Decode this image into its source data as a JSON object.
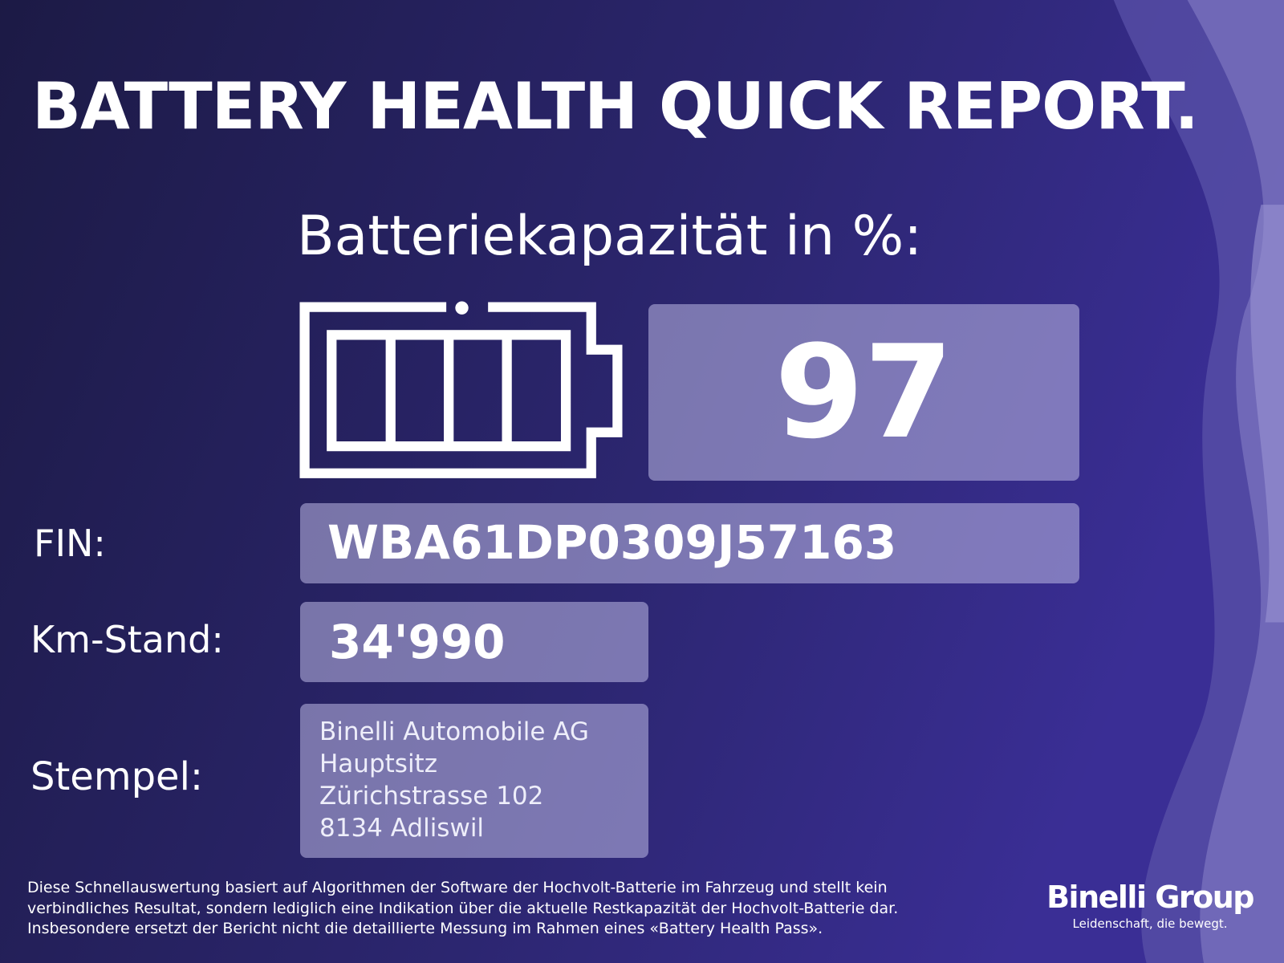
{
  "header": {
    "title": "BATTERY HEALTH QUICK REPORT."
  },
  "capacity": {
    "label": "Batteriekapazität in %:",
    "value": "97"
  },
  "fin": {
    "label": "FIN:",
    "value": "WBA61DP0309J57163"
  },
  "mileage": {
    "label": "Km-Stand:",
    "value": "34'990"
  },
  "stamp": {
    "label": "Stempel:",
    "lines": [
      "Binelli Automobile AG",
      "Hauptsitz",
      "Zürichstrasse 102",
      "8134 Adliswil"
    ]
  },
  "disclaimer": {
    "lines": [
      "Diese Schnellauswertung basiert auf Algorithmen der Software der Hochvolt-Batterie im Fahrzeug und stellt kein",
      "verbindliches Resultat, sondern lediglich eine Indikation über die aktuelle Restkapazität der Hochvolt-Batterie dar.",
      "Insbesondere ersetzt der Bericht nicht die detaillierte Messung im Rahmen eines «Battery Health Pass»."
    ]
  },
  "logo": {
    "name": "Binelli Group",
    "tagline": "Leidenschaft, die bewegt."
  }
}
